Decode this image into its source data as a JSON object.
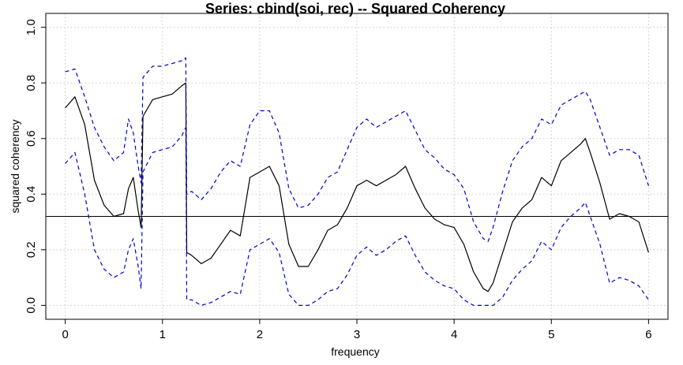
{
  "chart_data": {
    "type": "line",
    "title": "Series: cbind(soi, rec) --  Squared Coherency",
    "xlabel": "frequency",
    "ylabel": "squared coherency",
    "xlim": [
      -0.2,
      6.2
    ],
    "ylim": [
      -0.05,
      1.05
    ],
    "xticks": [
      "0",
      "1",
      "2",
      "3",
      "4",
      "5",
      "6"
    ],
    "yticks": [
      "0.0",
      "0.2",
      "0.4",
      "0.6",
      "0.8",
      "1.0"
    ],
    "grid": true,
    "hline": 0.32,
    "colors": {
      "coherency": "#000000",
      "band": "#0000CD",
      "grid": "#C8C8C8"
    },
    "x": [
      0,
      0.1,
      0.2,
      0.3,
      0.4,
      0.5,
      0.6,
      0.65,
      0.7,
      0.75,
      0.78,
      0.8,
      0.9,
      1.0,
      1.1,
      1.2,
      1.24,
      1.25,
      1.3,
      1.4,
      1.5,
      1.6,
      1.7,
      1.8,
      1.9,
      2.0,
      2.1,
      2.2,
      2.3,
      2.4,
      2.5,
      2.6,
      2.7,
      2.8,
      2.9,
      3.0,
      3.1,
      3.2,
      3.3,
      3.4,
      3.5,
      3.6,
      3.7,
      3.8,
      3.9,
      4.0,
      4.1,
      4.2,
      4.3,
      4.35,
      4.4,
      4.5,
      4.6,
      4.7,
      4.8,
      4.9,
      5.0,
      5.1,
      5.2,
      5.3,
      5.35,
      5.4,
      5.5,
      5.6,
      5.7,
      5.8,
      5.9,
      6.0
    ],
    "series": [
      {
        "values": [
          0.71,
          0.75,
          0.65,
          0.45,
          0.36,
          0.32,
          0.33,
          0.42,
          0.46,
          0.34,
          0.28,
          0.68,
          0.74,
          0.75,
          0.76,
          0.79,
          0.8,
          0.19,
          0.18,
          0.15,
          0.17,
          0.22,
          0.27,
          0.25,
          0.46,
          0.48,
          0.5,
          0.43,
          0.22,
          0.14,
          0.14,
          0.2,
          0.27,
          0.29,
          0.35,
          0.43,
          0.45,
          0.43,
          0.45,
          0.47,
          0.5,
          0.42,
          0.35,
          0.31,
          0.29,
          0.28,
          0.22,
          0.12,
          0.06,
          0.05,
          0.08,
          0.19,
          0.3,
          0.35,
          0.38,
          0.46,
          0.43,
          0.52,
          0.55,
          0.58,
          0.6,
          0.55,
          0.44,
          0.31,
          0.33,
          0.32,
          0.3,
          0.19
        ]
      },
      {
        "values": [
          0.84,
          0.85,
          0.75,
          0.64,
          0.57,
          0.52,
          0.55,
          0.67,
          0.62,
          0.5,
          0.44,
          0.82,
          0.86,
          0.86,
          0.87,
          0.88,
          0.89,
          0.4,
          0.41,
          0.38,
          0.42,
          0.48,
          0.52,
          0.5,
          0.65,
          0.7,
          0.7,
          0.62,
          0.42,
          0.35,
          0.36,
          0.4,
          0.46,
          0.48,
          0.56,
          0.64,
          0.67,
          0.64,
          0.66,
          0.68,
          0.7,
          0.63,
          0.56,
          0.53,
          0.49,
          0.47,
          0.42,
          0.3,
          0.24,
          0.23,
          0.28,
          0.41,
          0.52,
          0.57,
          0.6,
          0.67,
          0.65,
          0.72,
          0.74,
          0.76,
          0.77,
          0.74,
          0.64,
          0.54,
          0.56,
          0.56,
          0.54,
          0.43
        ]
      },
      {
        "values": [
          0.51,
          0.55,
          0.4,
          0.2,
          0.13,
          0.1,
          0.12,
          0.2,
          0.24,
          0.14,
          0.06,
          0.48,
          0.55,
          0.56,
          0.57,
          0.61,
          0.64,
          0.02,
          0.02,
          0.0,
          0.01,
          0.03,
          0.05,
          0.04,
          0.2,
          0.22,
          0.24,
          0.19,
          0.04,
          0.0,
          0.0,
          0.02,
          0.05,
          0.06,
          0.11,
          0.18,
          0.21,
          0.18,
          0.2,
          0.23,
          0.25,
          0.18,
          0.12,
          0.09,
          0.07,
          0.06,
          0.02,
          0.0,
          0.0,
          0.0,
          0.0,
          0.03,
          0.09,
          0.13,
          0.16,
          0.23,
          0.2,
          0.28,
          0.32,
          0.35,
          0.37,
          0.32,
          0.22,
          0.08,
          0.1,
          0.09,
          0.07,
          0.02
        ]
      }
    ]
  }
}
